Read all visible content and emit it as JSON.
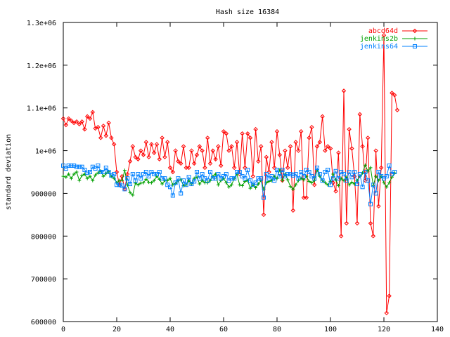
{
  "chart_data": {
    "type": "line",
    "title": "Hash size 16384",
    "xlabel": "",
    "ylabel": "standard deviation",
    "xlim": [
      0,
      140
    ],
    "ylim": [
      600000,
      1300000
    ],
    "x_ticks": [
      0,
      20,
      40,
      60,
      80,
      100,
      120,
      140
    ],
    "x_tick_labels": [
      "0",
      "20",
      "40",
      "60",
      "80",
      "100",
      "120",
      "140"
    ],
    "y_ticks": [
      600000,
      700000,
      800000,
      900000,
      1000000,
      1100000,
      1200000,
      1300000
    ],
    "y_tick_labels": [
      "600000",
      "700000",
      "800000",
      "900000",
      "1e+06",
      "1.1e+06",
      "1.2e+06",
      "1.3e+06"
    ],
    "grid": false,
    "legend_position": "top-right",
    "series": [
      {
        "name": "abcd64d",
        "color": "#ff0000",
        "marker": "diamond",
        "values": [
          1075000,
          1060000,
          1075000,
          1070000,
          1065000,
          1068000,
          1062000,
          1068000,
          1050000,
          1080000,
          1075000,
          1090000,
          1052000,
          1055000,
          1030000,
          1058000,
          1035000,
          1065000,
          1030000,
          1015000,
          950000,
          920000,
          940000,
          910000,
          945000,
          975000,
          1010000,
          985000,
          980000,
          1000000,
          990000,
          1020000,
          985000,
          1015000,
          995000,
          1015000,
          980000,
          1030000,
          985000,
          1020000,
          960000,
          950000,
          1000000,
          975000,
          970000,
          1010000,
          960000,
          960000,
          1000000,
          970000,
          990000,
          1010000,
          1000000,
          960000,
          1030000,
          970000,
          1000000,
          980000,
          1010000,
          965000,
          1045000,
          1040000,
          1000000,
          1010000,
          960000,
          1020000,
          945000,
          1040000,
          960000,
          1040000,
          1030000,
          940000,
          1050000,
          975000,
          1010000,
          850000,
          985000,
          950000,
          1020000,
          960000,
          1045000,
          990000,
          930000,
          1000000,
          960000,
          1010000,
          860000,
          1020000,
          1000000,
          1045000,
          890000,
          890000,
          1030000,
          1055000,
          920000,
          1010000,
          1020000,
          1080000,
          1000000,
          1010000,
          1005000,
          925000,
          905000,
          995000,
          800000,
          1140000,
          830000,
          1050000,
          1005000,
          940000,
          830000,
          1085000,
          1010000,
          930000,
          1030000,
          830000,
          800000,
          1000000,
          870000,
          960000,
          1270000,
          620000,
          660000,
          1135000,
          1130000,
          1095000
        ]
      },
      {
        "name": "jenkins2b",
        "color": "#00a000",
        "marker": "plus",
        "values": [
          940000,
          938000,
          945000,
          935000,
          945000,
          950000,
          930000,
          942000,
          945000,
          935000,
          940000,
          930000,
          943000,
          948000,
          952000,
          940000,
          946000,
          951000,
          940000,
          935000,
          925000,
          930000,
          930000,
          954000,
          920000,
          902000,
          896000,
          924000,
          920000,
          924000,
          925000,
          933000,
          926000,
          925000,
          930000,
          940000,
          933000,
          922000,
          930000,
          930000,
          935000,
          920000,
          923000,
          930000,
          932000,
          918000,
          920000,
          930000,
          922000,
          935000,
          938000,
          922000,
          930000,
          925000,
          925000,
          930000,
          940000,
          945000,
          920000,
          930000,
          935000,
          925000,
          915000,
          920000,
          935000,
          945000,
          920000,
          918000,
          928000,
          930000,
          912000,
          920000,
          913000,
          922000,
          930000,
          910000,
          925000,
          928000,
          930000,
          940000,
          935000,
          955000,
          930000,
          945000,
          932000,
          916000,
          910000,
          920000,
          930000,
          935000,
          932000,
          940000,
          928000,
          925000,
          930000,
          955000,
          940000,
          930000,
          925000,
          920000,
          928000,
          945000,
          932000,
          918000,
          935000,
          930000,
          938000,
          920000,
          926000,
          922000,
          930000,
          940000,
          948000,
          966000,
          952000,
          960000,
          918000,
          940000,
          930000,
          940000,
          925000,
          915000,
          925000,
          938000,
          948000
        ]
      },
      {
        "name": "jenkins64",
        "color": "#0080ff",
        "marker": "square",
        "values": [
          965000,
          958000,
          965000,
          965000,
          965000,
          962000,
          962000,
          962000,
          955000,
          948000,
          950000,
          962000,
          958000,
          965000,
          950000,
          950000,
          960000,
          950000,
          942000,
          945000,
          920000,
          920000,
          918000,
          910000,
          935000,
          922000,
          945000,
          930000,
          945000,
          935000,
          945000,
          950000,
          940000,
          950000,
          945000,
          945000,
          950000,
          935000,
          935000,
          920000,
          915000,
          895000,
          925000,
          935000,
          900000,
          930000,
          920000,
          938000,
          922000,
          928000,
          950000,
          935000,
          945000,
          935000,
          930000,
          950000,
          935000,
          935000,
          945000,
          935000,
          940000,
          945000,
          930000,
          935000,
          935000,
          950000,
          950000,
          940000,
          935000,
          955000,
          930000,
          920000,
          925000,
          935000,
          935000,
          890000,
          945000,
          935000,
          940000,
          930000,
          955000,
          940000,
          955000,
          940000,
          945000,
          945000,
          942000,
          945000,
          935000,
          950000,
          940000,
          955000,
          950000,
          940000,
          935000,
          960000,
          945000,
          930000,
          950000,
          955000,
          920000,
          935000,
          952000,
          935000,
          950000,
          945000,
          930000,
          950000,
          938000,
          950000,
          922000,
          945000,
          915000,
          950000,
          930000,
          875000,
          920000,
          900000,
          950000,
          940000,
          935000,
          940000,
          965000,
          945000,
          950000
        ]
      }
    ]
  }
}
